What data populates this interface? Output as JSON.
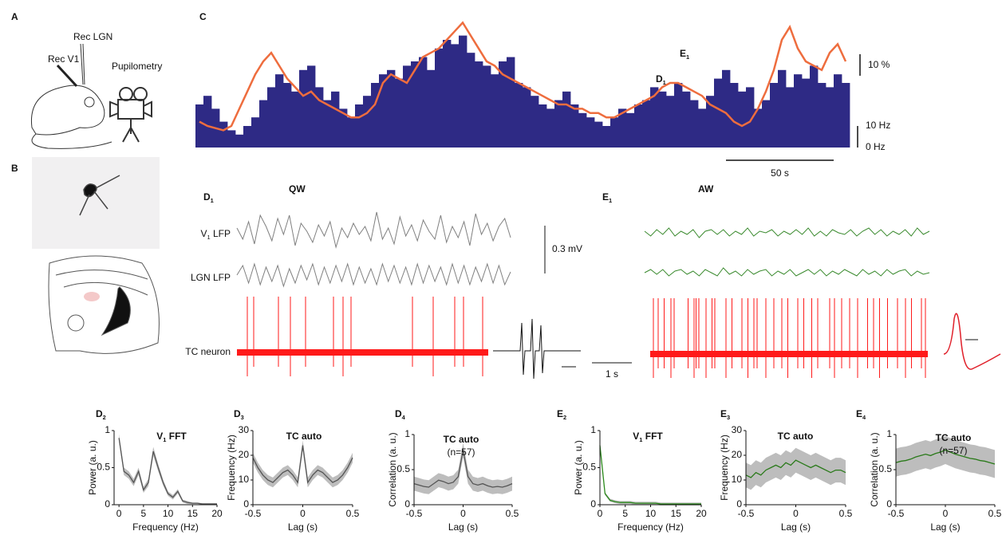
{
  "panel_labels": {
    "a": "A",
    "b": "B",
    "c": "C",
    "d1": [
      "D",
      "1"
    ],
    "e1": [
      "E",
      "1"
    ],
    "d2": [
      "D",
      "2"
    ],
    "d3": [
      "D",
      "3"
    ],
    "d4": [
      "D",
      "4"
    ],
    "e2": [
      "E",
      "2"
    ],
    "e3": [
      "E",
      "3"
    ],
    "e4": [
      "E",
      "4"
    ]
  },
  "schematic": {
    "rec_lgn": "Rec LGN",
    "rec_v1": "Rec V1",
    "pupilometry": "Pupilometry"
  },
  "chart_data": [
    {
      "type": "combo",
      "hist": {
        "color": "#2e2a85",
        "ylim": [
          0,
          60
        ],
        "values": [
          20,
          24,
          18,
          12,
          8,
          6,
          10,
          14,
          22,
          28,
          34,
          30,
          26,
          36,
          38,
          28,
          22,
          26,
          18,
          14,
          20,
          24,
          30,
          34,
          36,
          32,
          38,
          40,
          42,
          36,
          46,
          50,
          48,
          52,
          44,
          40,
          38,
          34,
          40,
          42,
          30,
          28,
          24,
          20,
          18,
          22,
          26,
          20,
          16,
          14,
          12,
          10,
          14,
          18,
          16,
          20,
          22,
          28,
          26,
          24,
          30,
          26,
          22,
          18,
          24,
          32,
          36,
          30,
          26,
          28,
          18,
          22,
          30,
          36,
          28,
          34,
          32,
          38,
          30,
          28,
          34,
          30
        ],
        "scalebar": [
          {
            "value": 0,
            "label": "0 Hz"
          },
          {
            "value": 10,
            "label": "10 Hz"
          }
        ]
      },
      "pupil": {
        "color": "#ee6d3e",
        "ylim": [
          0,
          60
        ],
        "values": [
          12,
          10,
          9,
          8,
          10,
          18,
          26,
          34,
          40,
          44,
          38,
          32,
          28,
          24,
          26,
          22,
          20,
          18,
          16,
          14,
          14,
          16,
          20,
          30,
          34,
          32,
          30,
          36,
          42,
          44,
          46,
          50,
          54,
          58,
          52,
          46,
          40,
          38,
          34,
          32,
          30,
          28,
          26,
          24,
          22,
          20,
          20,
          18,
          18,
          16,
          16,
          14,
          14,
          16,
          18,
          20,
          22,
          24,
          28,
          30,
          30,
          28,
          26,
          24,
          20,
          18,
          16,
          12,
          10,
          12,
          18,
          26,
          36,
          50,
          56,
          46,
          40,
          38,
          36,
          44,
          48,
          40
        ],
        "scalebar": {
          "value": 10,
          "label": "10 %"
        }
      },
      "markers": [
        [
          "D",
          "1"
        ],
        [
          "E",
          "1"
        ]
      ],
      "time_scalebar": {
        "value": 50,
        "label": "50 s"
      }
    },
    {
      "type": "traces",
      "title": "QW",
      "title_color": "#a0a0a0",
      "trace_color": "#808080",
      "traces": [
        {
          "name": [
            "V",
            "1",
            " LFP"
          ],
          "values": [
            0.02,
            -0.05,
            0.06,
            -0.08,
            0.1,
            0.03,
            -0.06,
            0.08,
            -0.02,
            0.1,
            -0.09,
            0.05,
            0.0,
            -0.07,
            0.04,
            -0.03,
            0.06,
            -0.1,
            0.02,
            -0.04,
            0.05,
            -0.02,
            0.03,
            -0.06,
            0.12,
            -0.05,
            0.02,
            -0.08,
            0.09,
            -0.03,
            0.04,
            -0.06,
            0.07,
            0.0,
            -0.05,
            0.1,
            -0.07,
            0.03,
            -0.04,
            0.06,
            -0.09,
            0.11,
            -0.02,
            0.05,
            -0.06,
            0.03,
            0.08,
            -0.04
          ]
        },
        {
          "name": "LGN LFP",
          "values": [
            0.0,
            0.06,
            -0.05,
            0.07,
            -0.06,
            0.05,
            -0.04,
            0.06,
            -0.07,
            0.04,
            -0.05,
            0.06,
            -0.03,
            0.07,
            -0.06,
            0.05,
            -0.05,
            0.06,
            -0.04,
            0.07,
            -0.06,
            0.05,
            -0.05,
            0.04,
            -0.06,
            0.07,
            -0.04,
            0.06,
            -0.05,
            0.05,
            -0.06,
            0.07,
            -0.05,
            0.06,
            -0.04,
            0.05,
            -0.06,
            0.07,
            -0.05,
            0.06,
            -0.06,
            0.05,
            -0.04,
            0.07,
            -0.05,
            0.06,
            -0.06,
            0.02
          ]
        }
      ],
      "scalebar": {
        "value": 0.3,
        "label": "0.3 mV"
      },
      "spikes": {
        "name": "TC neuron",
        "color": "#ff1a1a",
        "times": [
          0.26,
          0.42,
          1.04,
          1.34,
          1.72,
          2.42,
          2.66,
          2.86,
          4.4,
          4.92,
          5.46,
          5.68,
          6.16
        ]
      },
      "time_scalebar": {
        "value": 1,
        "label": "1 s"
      }
    },
    {
      "type": "traces",
      "title": "AW",
      "title_color": "#3d9b3d",
      "trace_color": "#3a8a2e",
      "traces": [
        {
          "values": [
            0.01,
            -0.02,
            0.02,
            -0.01,
            0.03,
            -0.02,
            0.01,
            -0.01,
            0.02,
            -0.03,
            0.01,
            0.02,
            -0.01,
            0.02,
            -0.02,
            0.01,
            -0.01,
            0.03,
            -0.02,
            0.01,
            0.0,
            0.02,
            -0.02,
            0.01,
            -0.01,
            0.02,
            -0.01,
            0.03,
            -0.02,
            0.01,
            -0.02,
            0.02,
            0.0,
            -0.01,
            0.02,
            -0.02,
            0.01,
            0.03,
            -0.01,
            0.02,
            -0.02,
            0.01,
            -0.01,
            0.02,
            -0.02,
            0.03,
            -0.01,
            0.01
          ]
        },
        {
          "values": [
            0.0,
            0.02,
            -0.01,
            0.02,
            -0.02,
            0.01,
            0.02,
            -0.01,
            0.01,
            -0.02,
            0.02,
            0.0,
            -0.02,
            0.03,
            -0.01,
            0.01,
            -0.02,
            0.02,
            -0.01,
            0.01,
            0.02,
            -0.02,
            0.01,
            -0.01,
            0.02,
            -0.02,
            0.0,
            0.02,
            -0.01,
            0.02,
            -0.02,
            0.01,
            -0.01,
            0.02,
            0.0,
            -0.02,
            0.02,
            -0.01,
            0.01,
            -0.02,
            0.02,
            -0.01,
            0.01,
            0.02,
            -0.02,
            0.01,
            -0.01,
            0.0
          ]
        }
      ],
      "spikes": {
        "color": "#ff1a1a",
        "times": [
          0.08,
          0.2,
          0.35,
          0.52,
          0.6,
          0.95,
          1.1,
          1.15,
          1.22,
          1.4,
          1.55,
          1.62,
          1.9,
          2.05,
          2.3,
          2.45,
          2.6,
          2.68,
          2.9,
          3.1,
          3.3,
          3.45,
          3.7,
          3.85,
          4.05,
          4.2,
          4.5,
          4.62,
          4.8,
          5.0,
          5.2,
          5.45,
          5.6,
          5.75,
          5.95,
          6.2,
          6.4,
          6.55,
          6.8,
          6.9
        ]
      }
    },
    {
      "type": "line",
      "title": [
        "V",
        "1",
        " FFT"
      ],
      "title_color": "#111",
      "xlabel": "Frequency (Hz)",
      "ylabel": "Power (a. u.)",
      "color": "#555555",
      "band_color": "#bdbdbd",
      "x": [
        0,
        1,
        2,
        3,
        4,
        5,
        6,
        7,
        8,
        9,
        10,
        11,
        12,
        13,
        14,
        15,
        16,
        17,
        18,
        19,
        20
      ],
      "values": [
        0.9,
        0.45,
        0.4,
        0.3,
        0.45,
        0.2,
        0.3,
        0.72,
        0.5,
        0.3,
        0.15,
        0.1,
        0.18,
        0.05,
        0.03,
        0.02,
        0.02,
        0.01,
        0.01,
        0.01,
        0.01
      ],
      "err": [
        0.05,
        0.05,
        0.05,
        0.05,
        0.05,
        0.04,
        0.05,
        0.06,
        0.05,
        0.04,
        0.03,
        0.03,
        0.03,
        0.02,
        0.02,
        0.01,
        0.01,
        0.01,
        0.01,
        0.01,
        0.01
      ],
      "xlim": [
        -1,
        20
      ],
      "ylim": [
        0,
        1
      ],
      "xticks": [
        0,
        5,
        10,
        15,
        20
      ],
      "yticks": [
        0,
        0.5,
        1
      ]
    },
    {
      "type": "line",
      "title": "TC auto",
      "title_color": "#ff1a1a",
      "xlabel": "Lag (s)",
      "ylabel": "Frequency (Hz)",
      "color": "#555555",
      "band_color": "#bdbdbd",
      "x": [
        -0.5,
        -0.45,
        -0.4,
        -0.35,
        -0.3,
        -0.25,
        -0.2,
        -0.15,
        -0.1,
        -0.05,
        0,
        0.05,
        0.1,
        0.15,
        0.2,
        0.25,
        0.3,
        0.35,
        0.4,
        0.45,
        0.5
      ],
      "values": [
        19,
        15,
        12,
        10,
        9,
        11,
        13,
        14,
        12,
        9,
        24,
        9,
        12,
        14,
        13,
        11,
        9,
        10,
        12,
        15,
        19
      ],
      "err": [
        2,
        2,
        2,
        2,
        2,
        2,
        2,
        2,
        2,
        2,
        2,
        2,
        2,
        2,
        2,
        2,
        2,
        2,
        2,
        2,
        2
      ],
      "xlim": [
        -0.5,
        0.5
      ],
      "ylim": [
        0,
        30
      ],
      "xticks": [
        -0.5,
        0,
        0.5
      ],
      "yticks": [
        0,
        10,
        20,
        30
      ]
    },
    {
      "type": "line",
      "title": "TC auto",
      "subtitle": "(n=57)",
      "title_color": "#111",
      "xlabel": "Lag (s)",
      "ylabel": "Correlation (a. u.)",
      "color": "#555555",
      "band_color": "#bdbdbd",
      "x": [
        -0.5,
        -0.45,
        -0.4,
        -0.35,
        -0.3,
        -0.25,
        -0.2,
        -0.15,
        -0.1,
        -0.05,
        0,
        0.05,
        0.1,
        0.15,
        0.2,
        0.25,
        0.3,
        0.35,
        0.4,
        0.45,
        0.5
      ],
      "values": [
        0.3,
        0.28,
        0.26,
        0.25,
        0.3,
        0.35,
        0.33,
        0.3,
        0.32,
        0.4,
        0.78,
        0.4,
        0.3,
        0.28,
        0.3,
        0.27,
        0.25,
        0.26,
        0.25,
        0.27,
        0.3
      ],
      "err": [
        0.1,
        0.1,
        0.1,
        0.1,
        0.1,
        0.1,
        0.1,
        0.1,
        0.1,
        0.1,
        0.1,
        0.1,
        0.1,
        0.1,
        0.1,
        0.1,
        0.1,
        0.1,
        0.1,
        0.1,
        0.1
      ],
      "xlim": [
        -0.5,
        0.5
      ],
      "ylim": [
        0,
        1
      ],
      "xticks": [
        -0.5,
        0,
        0.5
      ],
      "yticks": [
        0,
        0.5,
        1
      ]
    },
    {
      "type": "line",
      "title": [
        "V",
        "1",
        " FFT"
      ],
      "title_color": "#111",
      "xlabel": "Frequency (Hz)",
      "ylabel": "Power (a. u.)",
      "color": "#2a8a1a",
      "band_color": "#bdbdbd",
      "x": [
        0,
        1,
        2,
        3,
        4,
        5,
        6,
        7,
        8,
        9,
        10,
        11,
        12,
        13,
        14,
        15,
        16,
        17,
        18,
        19,
        20
      ],
      "values": [
        0.8,
        0.15,
        0.06,
        0.04,
        0.03,
        0.03,
        0.03,
        0.02,
        0.02,
        0.02,
        0.02,
        0.02,
        0.01,
        0.01,
        0.01,
        0.01,
        0.01,
        0.01,
        0.01,
        0.01,
        0.01
      ],
      "err": [
        0.02,
        0.02,
        0.02,
        0.02,
        0.02,
        0.02,
        0.02,
        0.02,
        0.02,
        0.02,
        0.02,
        0.02,
        0.02,
        0.02,
        0.02,
        0.02,
        0.02,
        0.02,
        0.02,
        0.02,
        0.02
      ],
      "xlim": [
        0,
        20
      ],
      "ylim": [
        0,
        1
      ],
      "xticks": [
        0,
        5,
        10,
        15,
        20
      ],
      "yticks": [
        0,
        0.5,
        1
      ]
    },
    {
      "type": "line",
      "title": "TC auto",
      "title_color": "#ff1a1a",
      "xlabel": "Lag (s)",
      "ylabel": "Frequency (Hz)",
      "color": "#2a7a1a",
      "band_color": "#bdbdbd",
      "x": [
        -0.5,
        -0.45,
        -0.4,
        -0.35,
        -0.3,
        -0.25,
        -0.2,
        -0.15,
        -0.1,
        -0.05,
        0,
        0.05,
        0.1,
        0.15,
        0.2,
        0.25,
        0.3,
        0.35,
        0.4,
        0.45,
        0.5
      ],
      "values": [
        12,
        11,
        13,
        12,
        14,
        15,
        16,
        15,
        17,
        16,
        18,
        17,
        16,
        15,
        16,
        15,
        14,
        13,
        14,
        14,
        13
      ],
      "err": [
        5,
        5,
        5,
        5,
        5,
        5,
        5,
        5,
        5,
        5,
        5,
        5,
        5,
        5,
        5,
        5,
        5,
        5,
        5,
        5,
        5
      ],
      "xlim": [
        -0.5,
        0.5
      ],
      "ylim": [
        0,
        30
      ],
      "xticks": [
        -0.5,
        0,
        0.5
      ],
      "yticks": [
        0,
        10,
        20,
        30
      ]
    },
    {
      "type": "line",
      "title": "TC auto",
      "subtitle": "(n=57)",
      "title_color": "#111",
      "xlabel": "Lag (s)",
      "ylabel": "Correlation (a. u.)",
      "color": "#2a7a1a",
      "band_color": "#bdbdbd",
      "x": [
        -0.5,
        -0.45,
        -0.4,
        -0.35,
        -0.3,
        -0.25,
        -0.2,
        -0.15,
        -0.1,
        -0.05,
        0,
        0.05,
        0.1,
        0.15,
        0.2,
        0.25,
        0.3,
        0.35,
        0.4,
        0.45,
        0.5
      ],
      "values": [
        0.6,
        0.62,
        0.63,
        0.65,
        0.68,
        0.7,
        0.72,
        0.7,
        0.73,
        0.75,
        0.78,
        0.75,
        0.72,
        0.7,
        0.68,
        0.66,
        0.65,
        0.63,
        0.62,
        0.6,
        0.58
      ],
      "err": [
        0.2,
        0.2,
        0.2,
        0.2,
        0.2,
        0.2,
        0.2,
        0.2,
        0.2,
        0.2,
        0.2,
        0.2,
        0.2,
        0.2,
        0.2,
        0.2,
        0.2,
        0.2,
        0.2,
        0.2,
        0.2
      ],
      "xlim": [
        -0.5,
        0.5
      ],
      "ylim": [
        0,
        1
      ],
      "xticks": [
        -0.5,
        0,
        0.5
      ],
      "yticks": [
        0,
        0.5,
        1
      ]
    }
  ]
}
